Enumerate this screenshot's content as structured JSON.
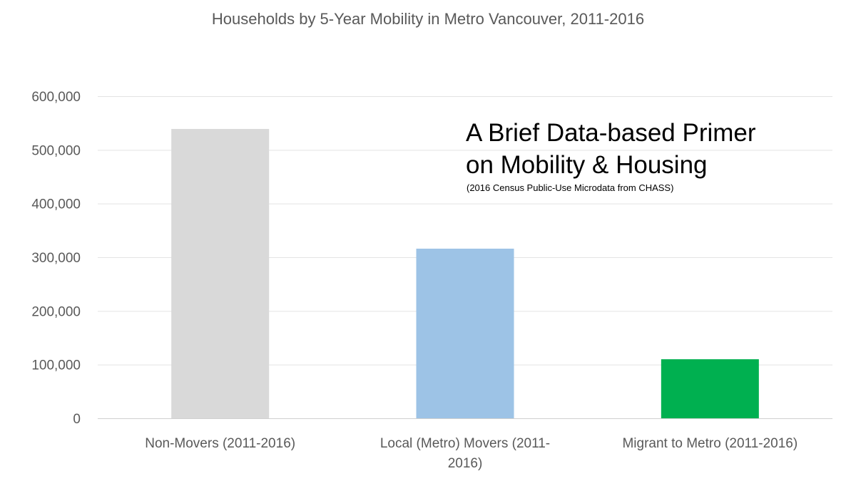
{
  "chart_data": {
    "type": "bar",
    "title": "Households by 5-Year Mobility in Metro Vancouver, 2011-2016",
    "categories": [
      "Non-Movers (2011-2016)",
      "Local (Metro) Movers (2011-2016)",
      "Migrant to Metro (2011-2016)"
    ],
    "category_lines": [
      [
        "Non-Movers (2011-2016)"
      ],
      [
        "Local (Metro) Movers (2011-",
        "2016)"
      ],
      [
        "Migrant to Metro (2011-2016)"
      ]
    ],
    "values": [
      539000,
      316000,
      110000
    ],
    "colors": [
      "#d9d9d9",
      "#9dc3e6",
      "#00b050"
    ],
    "ylim": [
      0,
      600000
    ],
    "yticks": [
      0,
      100000,
      200000,
      300000,
      400000,
      500000,
      600000
    ],
    "ytick_labels": [
      "0",
      "100,000",
      "200,000",
      "300,000",
      "400,000",
      "500,000",
      "600,000"
    ],
    "grid": true,
    "xlabel": "",
    "ylabel": "",
    "annotation": {
      "line1": "A Brief Data-based Primer",
      "line2": "on Mobility & Housing",
      "subtitle": "(2016 Census Public-Use Microdata from CHASS)"
    }
  }
}
